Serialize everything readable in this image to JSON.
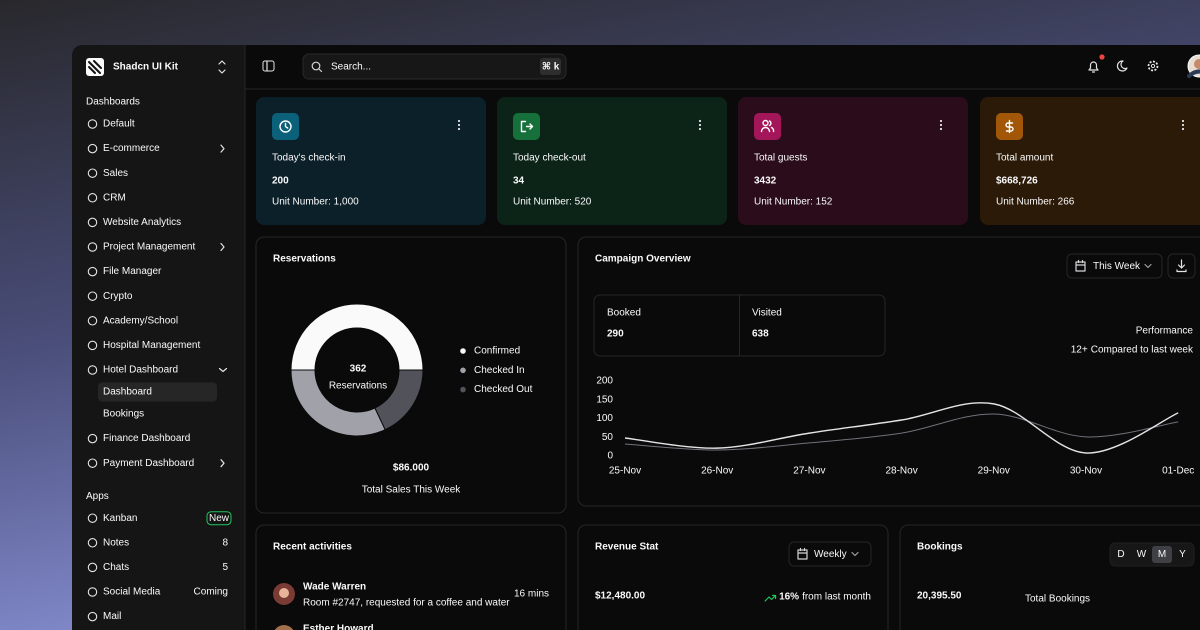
{
  "sidebar": {
    "brand": "Shadcn UI Kit",
    "sections": [
      {
        "title": "Dashboards",
        "items": [
          {
            "label": "Default"
          },
          {
            "label": "E-commerce",
            "chevron": "right"
          },
          {
            "label": "Sales"
          },
          {
            "label": "CRM"
          },
          {
            "label": "Website Analytics"
          },
          {
            "label": "Project Management",
            "chevron": "right"
          },
          {
            "label": "File Manager"
          },
          {
            "label": "Crypto"
          },
          {
            "label": "Academy/School"
          },
          {
            "label": "Hospital Management"
          },
          {
            "label": "Hotel Dashboard",
            "chevron": "down",
            "children": [
              {
                "label": "Dashboard",
                "active": true
              },
              {
                "label": "Bookings"
              }
            ]
          },
          {
            "label": "Finance Dashboard"
          },
          {
            "label": "Payment Dashboard",
            "chevron": "right"
          }
        ]
      },
      {
        "title": "Apps",
        "items": [
          {
            "label": "Kanban",
            "badge": "New",
            "badge_variant": "outline"
          },
          {
            "label": "Notes",
            "badge": "8"
          },
          {
            "label": "Chats",
            "badge": "5"
          },
          {
            "label": "Social Media",
            "badge": "Coming"
          },
          {
            "label": "Mail"
          }
        ]
      }
    ]
  },
  "topbar": {
    "search_placeholder": "Search...",
    "shortcut": "⌘ k"
  },
  "stats": [
    {
      "title": "Today's check-in",
      "value": "200",
      "subtitle": "Unit Number: 1,000",
      "color": "#22b8e0"
    },
    {
      "title": "Today check-out",
      "value": "34",
      "subtitle": "Unit Number: 520",
      "color": "#22c55e"
    },
    {
      "title": "Total guests",
      "value": "3432",
      "subtitle": "Unit Number: 152",
      "color": "#ec4899"
    },
    {
      "title": "Total amount",
      "value": "$668,726",
      "subtitle": "Unit Number: 266",
      "color": "#f59e0b"
    }
  ],
  "reservations": {
    "title": "Reservations",
    "center_value": "362",
    "center_label": "Reservations",
    "total": "$86.000",
    "total_label": "Total Sales This Week"
  },
  "campaign": {
    "title": "Campaign Overview",
    "period": "This Week",
    "booked_label": "Booked",
    "booked": "290",
    "visited_label": "Visited",
    "visited": "638",
    "performance": "Performance",
    "change": "12+",
    "change_label": "Compared to last week"
  },
  "activities": {
    "title": "Recent activities",
    "items": [
      {
        "name": "Wade Warren",
        "detail": "Room #2747, requested for a coffee and water",
        "time": "16 mins"
      },
      {
        "name": "Esther Howard"
      }
    ]
  },
  "revenue": {
    "title": "Revenue Stat",
    "period": "Weekly",
    "value": "$12,480.00",
    "change": "16%",
    "change_label": "from last month"
  },
  "bookings": {
    "title": "Bookings",
    "tabs": [
      "D",
      "W",
      "M",
      "Y"
    ],
    "active_tab": 2,
    "value": "20,395.50",
    "value_label": "Total Bookings"
  },
  "chart_data": [
    {
      "type": "donut",
      "categories": [
        "Confirmed",
        "Checked In",
        "Checked Out"
      ],
      "values": [
        50,
        32,
        18
      ],
      "colors": [
        "#fafafa",
        "#a1a1aa",
        "#52525b"
      ]
    },
    {
      "type": "line",
      "categories": [
        "25-Nov",
        "26-Nov",
        "27-Nov",
        "28-Nov",
        "29-Nov",
        "30-Nov",
        "01-Dec"
      ],
      "series": [
        {
          "color": "#e4e4e7",
          "values": [
            48,
            21,
            61,
            96,
            139,
            8,
            115
          ]
        },
        {
          "color": "#71717a",
          "values": [
            32,
            16,
            35,
            61,
            112,
            51,
            91
          ]
        }
      ],
      "ylim": [
        0,
        200
      ],
      "yticks": [
        0,
        50,
        100,
        150,
        200
      ]
    }
  ]
}
